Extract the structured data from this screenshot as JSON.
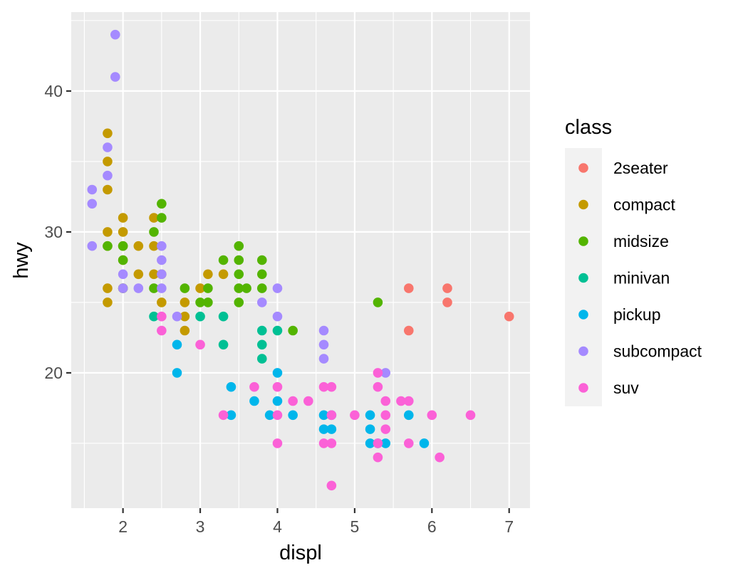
{
  "chart_data": {
    "type": "scatter",
    "xlabel": "displ",
    "ylabel": "hwy",
    "xlim": [
      1.33,
      7.27
    ],
    "ylim": [
      10.4,
      45.6
    ],
    "x_ticks": [
      2,
      3,
      4,
      5,
      6,
      7
    ],
    "y_ticks": [
      20,
      30,
      40
    ],
    "x_tick_labels": [
      "2",
      "3",
      "4",
      "5",
      "6",
      "7"
    ],
    "y_tick_labels": [
      "20",
      "30",
      "40"
    ],
    "grid": true,
    "legend": {
      "title": "class",
      "position": "right"
    },
    "series": [
      {
        "name": "2seater",
        "color": "#F8766D",
        "points": [
          [
            5.7,
            26
          ],
          [
            5.7,
            23
          ],
          [
            6.2,
            26
          ],
          [
            6.2,
            25
          ],
          [
            7.0,
            24
          ]
        ]
      },
      {
        "name": "compact",
        "color": "#C49A00",
        "points": [
          [
            1.8,
            37
          ],
          [
            1.8,
            35
          ],
          [
            1.8,
            33
          ],
          [
            1.8,
            30
          ],
          [
            1.8,
            29
          ],
          [
            1.8,
            26
          ],
          [
            1.8,
            25
          ],
          [
            2.0,
            31
          ],
          [
            2.0,
            30
          ],
          [
            2.0,
            29
          ],
          [
            2.0,
            28
          ],
          [
            2.0,
            26
          ],
          [
            2.2,
            29
          ],
          [
            2.2,
            27
          ],
          [
            2.4,
            31
          ],
          [
            2.4,
            29
          ],
          [
            2.4,
            27
          ],
          [
            2.5,
            27
          ],
          [
            2.5,
            25
          ],
          [
            2.8,
            25
          ],
          [
            2.8,
            24
          ],
          [
            2.8,
            23
          ],
          [
            3.0,
            26
          ],
          [
            3.1,
            27
          ],
          [
            3.3,
            27
          ]
        ]
      },
      {
        "name": "midsize",
        "color": "#53B400",
        "points": [
          [
            1.8,
            29
          ],
          [
            2.0,
            29
          ],
          [
            2.0,
            28
          ],
          [
            2.0,
            26
          ],
          [
            2.4,
            30
          ],
          [
            2.4,
            26
          ],
          [
            2.5,
            32
          ],
          [
            2.5,
            31
          ],
          [
            2.8,
            26
          ],
          [
            3.0,
            25
          ],
          [
            3.1,
            26
          ],
          [
            3.1,
            25
          ],
          [
            3.3,
            28
          ],
          [
            3.5,
            29
          ],
          [
            3.5,
            28
          ],
          [
            3.5,
            27
          ],
          [
            3.5,
            26
          ],
          [
            3.5,
            25
          ],
          [
            3.6,
            26
          ],
          [
            3.8,
            28
          ],
          [
            3.8,
            27
          ],
          [
            3.8,
            26
          ],
          [
            4.2,
            23
          ],
          [
            5.3,
            25
          ]
        ]
      },
      {
        "name": "minivan",
        "color": "#00C094",
        "points": [
          [
            2.4,
            24
          ],
          [
            3.0,
            24
          ],
          [
            3.3,
            24
          ],
          [
            3.3,
            22
          ],
          [
            3.8,
            23
          ],
          [
            3.8,
            22
          ],
          [
            3.8,
            21
          ],
          [
            4.0,
            23
          ]
        ]
      },
      {
        "name": "pickup",
        "color": "#00B6EB",
        "points": [
          [
            2.7,
            22
          ],
          [
            2.7,
            20
          ],
          [
            3.4,
            19
          ],
          [
            3.4,
            17
          ],
          [
            3.7,
            18
          ],
          [
            3.9,
            17
          ],
          [
            4.0,
            20
          ],
          [
            4.0,
            18
          ],
          [
            4.2,
            17
          ],
          [
            4.6,
            17
          ],
          [
            4.6,
            16
          ],
          [
            4.7,
            17
          ],
          [
            4.7,
            16
          ],
          [
            5.2,
            17
          ],
          [
            5.2,
            16
          ],
          [
            5.2,
            15
          ],
          [
            5.3,
            15
          ],
          [
            5.4,
            15
          ],
          [
            5.7,
            17
          ],
          [
            5.9,
            15
          ]
        ]
      },
      {
        "name": "subcompact",
        "color": "#A58AFF",
        "points": [
          [
            1.6,
            33
          ],
          [
            1.6,
            32
          ],
          [
            1.6,
            29
          ],
          [
            1.8,
            36
          ],
          [
            1.8,
            34
          ],
          [
            1.9,
            44
          ],
          [
            1.9,
            41
          ],
          [
            2.0,
            27
          ],
          [
            2.0,
            26
          ],
          [
            2.2,
            26
          ],
          [
            2.5,
            29
          ],
          [
            2.5,
            28
          ],
          [
            2.5,
            27
          ],
          [
            2.5,
            26
          ],
          [
            2.7,
            24
          ],
          [
            3.8,
            25
          ],
          [
            4.0,
            26
          ],
          [
            4.0,
            24
          ],
          [
            4.6,
            23
          ],
          [
            4.6,
            22
          ],
          [
            4.6,
            21
          ],
          [
            5.4,
            20
          ]
        ]
      },
      {
        "name": "suv",
        "color": "#FB61D7",
        "points": [
          [
            2.5,
            24
          ],
          [
            2.5,
            23
          ],
          [
            3.0,
            22
          ],
          [
            3.3,
            17
          ],
          [
            3.7,
            19
          ],
          [
            4.0,
            19
          ],
          [
            4.0,
            17
          ],
          [
            4.0,
            15
          ],
          [
            4.2,
            18
          ],
          [
            4.4,
            18
          ],
          [
            4.6,
            19
          ],
          [
            4.6,
            15
          ],
          [
            4.7,
            19
          ],
          [
            4.7,
            17
          ],
          [
            4.7,
            15
          ],
          [
            4.7,
            12
          ],
          [
            5.0,
            17
          ],
          [
            5.3,
            20
          ],
          [
            5.3,
            19
          ],
          [
            5.3,
            15
          ],
          [
            5.3,
            14
          ],
          [
            5.4,
            18
          ],
          [
            5.4,
            17
          ],
          [
            5.4,
            16
          ],
          [
            5.6,
            18
          ],
          [
            5.7,
            18
          ],
          [
            5.7,
            15
          ],
          [
            6.0,
            17
          ],
          [
            6.1,
            14
          ],
          [
            6.5,
            17
          ]
        ]
      }
    ]
  }
}
